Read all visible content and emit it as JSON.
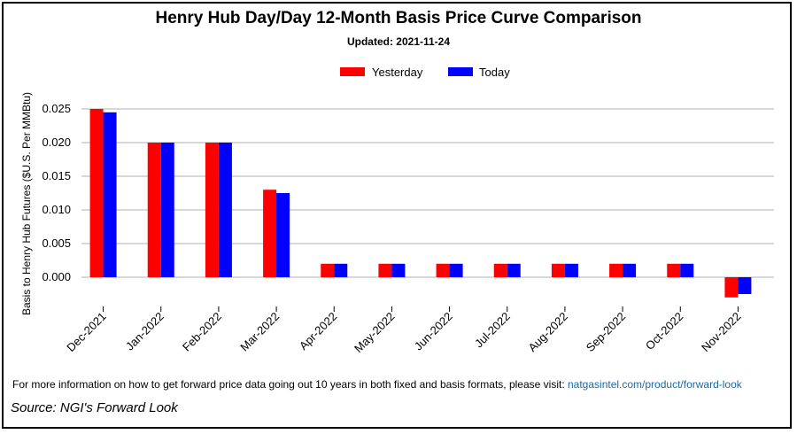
{
  "chart_data": {
    "type": "bar",
    "title": "Henry Hub Day/Day 12-Month Basis Price Curve Comparison",
    "subtitle": "Updated: 2021-11-24",
    "ylabel": "Basis to Henry Hub Futures ($U.S. Per MMBtu)",
    "xlabel": "",
    "ylim": [
      -0.003,
      0.026
    ],
    "yticks": [
      "0.000",
      "0.005",
      "0.010",
      "0.015",
      "0.020",
      "0.025"
    ],
    "ytick_values": [
      0.0,
      0.005,
      0.01,
      0.015,
      0.02,
      0.025
    ],
    "grid": true,
    "legend_position": "top-center",
    "categories": [
      "Dec-2021",
      "Jan-2022",
      "Feb-2022",
      "Mar-2022",
      "Apr-2022",
      "May-2022",
      "Jun-2022",
      "Jul-2022",
      "Aug-2022",
      "Sep-2022",
      "Oct-2022",
      "Nov-2022"
    ],
    "series": [
      {
        "name": "Yesterday",
        "color": "#ff0000",
        "values": [
          0.025,
          0.02,
          0.02,
          0.013,
          0.002,
          0.002,
          0.002,
          0.002,
          0.002,
          0.002,
          0.002,
          -0.003
        ]
      },
      {
        "name": "Today",
        "color": "#0000ff",
        "values": [
          0.0245,
          0.02,
          0.02,
          0.0125,
          0.002,
          0.002,
          0.002,
          0.002,
          0.002,
          0.002,
          0.002,
          -0.0025
        ]
      }
    ]
  },
  "footer": {
    "note_text": "For more information on how to get forward price data going out 10 years in both fixed and basis formats, please visit: ",
    "link_text": "natgasintel.com/product/forward-look",
    "source": "Source: NGI's Forward Look"
  }
}
